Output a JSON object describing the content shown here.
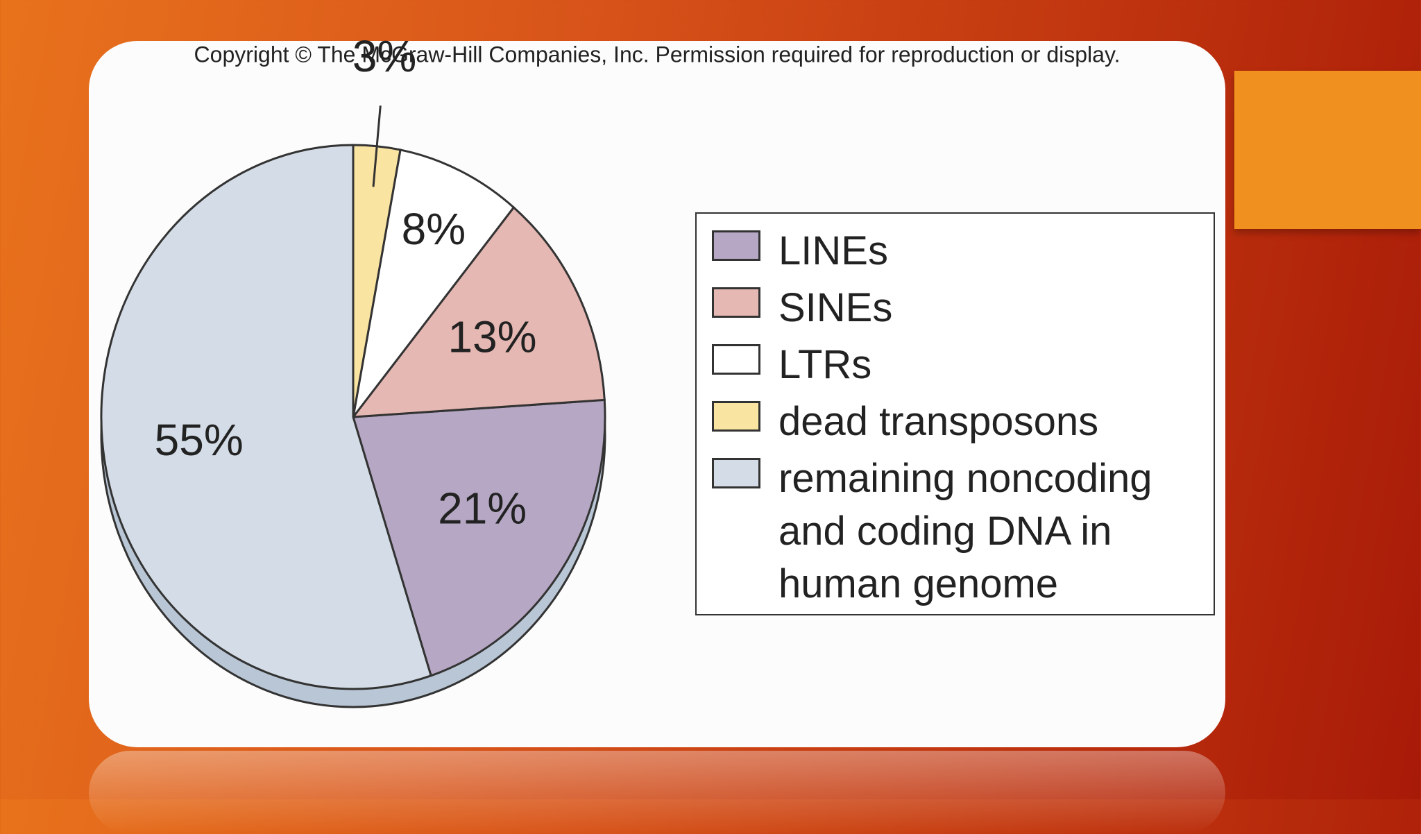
{
  "chart_data": {
    "type": "pie",
    "title": "Copyright © The McGraw-Hill Companies, Inc. Permission required for reproduction or display.",
    "categories": [
      "LINEs",
      "SINEs",
      "LTRs",
      "dead transposons",
      "remaining noncoding and coding DNA in human genome"
    ],
    "values": [
      21,
      13,
      8,
      3,
      55
    ],
    "value_labels": [
      "21%",
      "13%",
      "8%",
      "3%",
      "55%"
    ],
    "colors": [
      "#b6a8c4",
      "#e6b8b3",
      "#ffffff",
      "#fae4a2",
      "#d4dde7"
    ],
    "legend": "right"
  }
}
